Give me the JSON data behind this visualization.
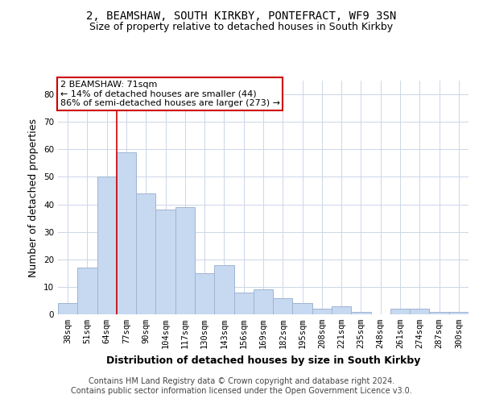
{
  "title1": "2, BEAMSHAW, SOUTH KIRKBY, PONTEFRACT, WF9 3SN",
  "title2": "Size of property relative to detached houses in South Kirkby",
  "xlabel": "Distribution of detached houses by size in South Kirkby",
  "ylabel": "Number of detached properties",
  "categories": [
    "38sqm",
    "51sqm",
    "64sqm",
    "77sqm",
    "90sqm",
    "104sqm",
    "117sqm",
    "130sqm",
    "143sqm",
    "156sqm",
    "169sqm",
    "182sqm",
    "195sqm",
    "208sqm",
    "221sqm",
    "235sqm",
    "248sqm",
    "261sqm",
    "274sqm",
    "287sqm",
    "300sqm"
  ],
  "values": [
    4,
    17,
    50,
    59,
    44,
    38,
    39,
    15,
    18,
    8,
    9,
    6,
    4,
    2,
    3,
    1,
    0,
    2,
    2,
    1,
    1
  ],
  "bar_color": "#c6d9f1",
  "bar_edge_color": "#a0b4d0",
  "vline_x_index": 2.5,
  "vline_color": "#cc0000",
  "annotation_text": "2 BEAMSHAW: 71sqm\n← 14% of detached houses are smaller (44)\n86% of semi-detached houses are larger (273) →",
  "annotation_box_color": "#ffffff",
  "annotation_box_edge_color": "#cc0000",
  "ylim": [
    0,
    85
  ],
  "yticks": [
    0,
    10,
    20,
    30,
    40,
    50,
    60,
    70,
    80
  ],
  "footer_line1": "Contains HM Land Registry data © Crown copyright and database right 2024.",
  "footer_line2": "Contains public sector information licensed under the Open Government Licence v3.0.",
  "title_fontsize": 10,
  "subtitle_fontsize": 9,
  "axis_label_fontsize": 9,
  "tick_fontsize": 7.5,
  "annotation_fontsize": 8,
  "footer_fontsize": 7,
  "background_color": "#ffffff",
  "grid_color": "#ccd6e8"
}
